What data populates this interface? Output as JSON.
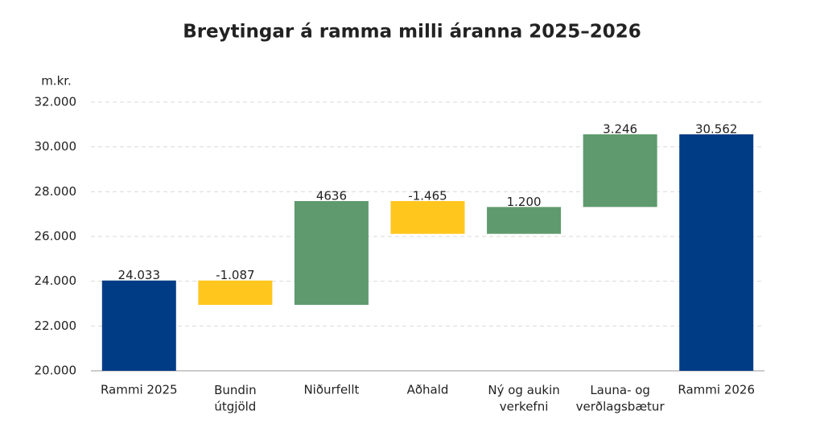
{
  "chart_data": {
    "type": "waterfall",
    "title": "Breytingar á ramma milli áranna 2025–2026",
    "y_label": "m.kr.",
    "categories": [
      "Rammi 2025",
      "Bundin\nútgjöld",
      "Niðurfellt",
      "Aðhald",
      "Ný og aukin\nverkefni",
      "Launa- og\nverðlagsbætur",
      "Rammi 2026"
    ],
    "values": [
      24033,
      -1087,
      4636,
      -1465,
      1200,
      3246,
      30562
    ],
    "value_labels": [
      "24.033",
      "-1.087",
      "4636",
      "-1.465",
      "1.200",
      "3.246",
      "30.562"
    ],
    "colors": [
      "#003c85",
      "#ffc61e",
      "#5f9a6e",
      "#ffc61e",
      "#5f9a6e",
      "#5f9a6e",
      "#003c85"
    ],
    "ylim": [
      20000,
      32000
    ],
    "yticks": [
      {
        "value": 20000,
        "label": "20.000"
      },
      {
        "value": 22000,
        "label": "22.000"
      },
      {
        "value": 24000,
        "label": "24.000"
      },
      {
        "value": 26000,
        "label": "26.000"
      },
      {
        "value": 28000,
        "label": "28.000"
      },
      {
        "value": 30000,
        "label": "30.000"
      },
      {
        "value": 32000,
        "label": "32.000"
      }
    ],
    "grid": true
  }
}
